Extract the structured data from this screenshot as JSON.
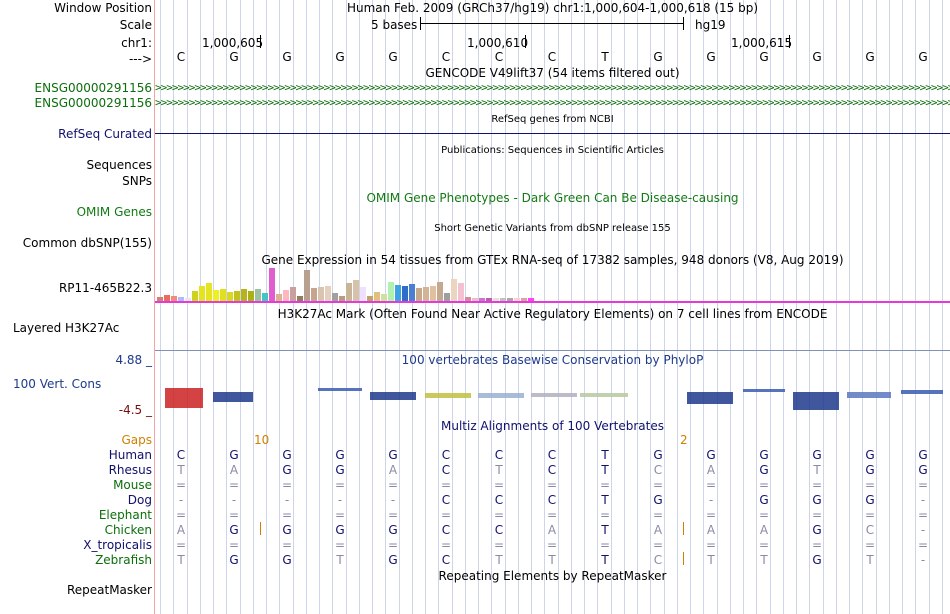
{
  "labels": {
    "window_position": "Window Position",
    "scale": "Scale",
    "chr": "chr1:",
    "strand_arrow": "--->",
    "gene1": "ENSG00000291156",
    "gene2": "ENSG00000291156",
    "refseq": "RefSeq Curated",
    "sequences": "Sequences",
    "snps": "SNPs",
    "omim_genes": "OMIM Genes",
    "common_dbsnp": "Common dbSNP(155)",
    "gtex_gene": "RP11-465B22.3",
    "layered": "Layered H3K27Ac",
    "cons_max": "4.88 _",
    "cons_label": "100 Vert. Cons",
    "cons_min": "-4.5 _",
    "gaps": "Gaps",
    "species": [
      "Human",
      "Rhesus",
      "Mouse",
      "Dog",
      "Elephant",
      "Chicken",
      "X_tropicalis",
      "Zebrafish"
    ],
    "repeatmasker": "RepeatMasker"
  },
  "header": {
    "assembly": "Human Feb. 2009 (GRCh37/hg19)   chr1:1,000,604-1,000,618 (15 bp)",
    "scale_text": "5 bases",
    "scale_db": "hg19",
    "ticks": [
      "1,000,605",
      "1,000,610",
      "1,000,615"
    ]
  },
  "bases": [
    "C",
    "G",
    "G",
    "G",
    "G",
    "C",
    "C",
    "C",
    "T",
    "G",
    "G",
    "G",
    "G",
    "G",
    "G"
  ],
  "track_titles": {
    "gencode": "GENCODE V49lift37 (54 items filtered out)",
    "refseq": "RefSeq genes from NCBI",
    "publications": "Publications: Sequences in Scientific Articles",
    "omim": "OMIM Gene Phenotypes - Dark Green Can Be Disease-causing",
    "dbsnp": "Short Genetic Variants from dbSNP release 155",
    "gtex": "Gene Expression in 54 tissues from GTEx RNA-seq of 17382 samples, 948 donors (V8, Aug 2019)",
    "h3k27ac": "H3K27Ac Mark (Often Found Near Active Regulatory Elements) on 7 cell lines from ENCODE",
    "phylop": "100 vertebrates Basewise Conservation by PhyloP",
    "multiz": "Multiz Alignments of 100 Vertebrates",
    "repeat": "Repeating Elements by RepeatMasker"
  },
  "gap_counts": [
    "10",
    "2"
  ],
  "alignment": {
    "Human": [
      "C",
      "G",
      "G",
      "G",
      "G",
      "C",
      "C",
      "C",
      "T",
      "G",
      "G",
      "G",
      "G",
      "G",
      "G"
    ],
    "Rhesus": [
      "T",
      "A",
      "G",
      "G",
      "A",
      "C",
      "T",
      "C",
      "T",
      "C",
      "A",
      "G",
      "T",
      "G",
      "G"
    ],
    "Mouse": [
      "=",
      "=",
      "=",
      "=",
      "=",
      "=",
      "=",
      "=",
      "=",
      "=",
      "=",
      "=",
      "=",
      "=",
      "="
    ],
    "Dog": [
      "-",
      "-",
      "-",
      "-",
      "-",
      "C",
      "C",
      "C",
      "T",
      "G",
      "-",
      "G",
      "G",
      "G",
      "-"
    ],
    "Elephant": [
      "=",
      "=",
      "=",
      "=",
      "=",
      "=",
      "=",
      "=",
      "=",
      "=",
      "=",
      "=",
      "=",
      "=",
      "="
    ],
    "Chicken": [
      "A",
      "G",
      "G",
      "G",
      "G",
      "C",
      "C",
      "A",
      "T",
      "A",
      "A",
      "A",
      "G",
      "C",
      "-"
    ],
    "X_tropicalis": [
      "=",
      "=",
      "=",
      "=",
      "=",
      "=",
      "=",
      "=",
      "=",
      "=",
      "=",
      "=",
      "=",
      "=",
      "="
    ],
    "Zebrafish": [
      "T",
      "G",
      "G",
      "T",
      "G",
      "C",
      "T",
      "T",
      "T",
      "C",
      "T",
      "T",
      "G",
      "T",
      "-"
    ]
  },
  "colors": {
    "green": "#0b6e0b",
    "navy": "#10106e",
    "omim_green": "#137a13",
    "phylop_blue": "#1e3a8c",
    "gaps_orange": "#d08000",
    "grid": "#ccd6e8"
  }
}
